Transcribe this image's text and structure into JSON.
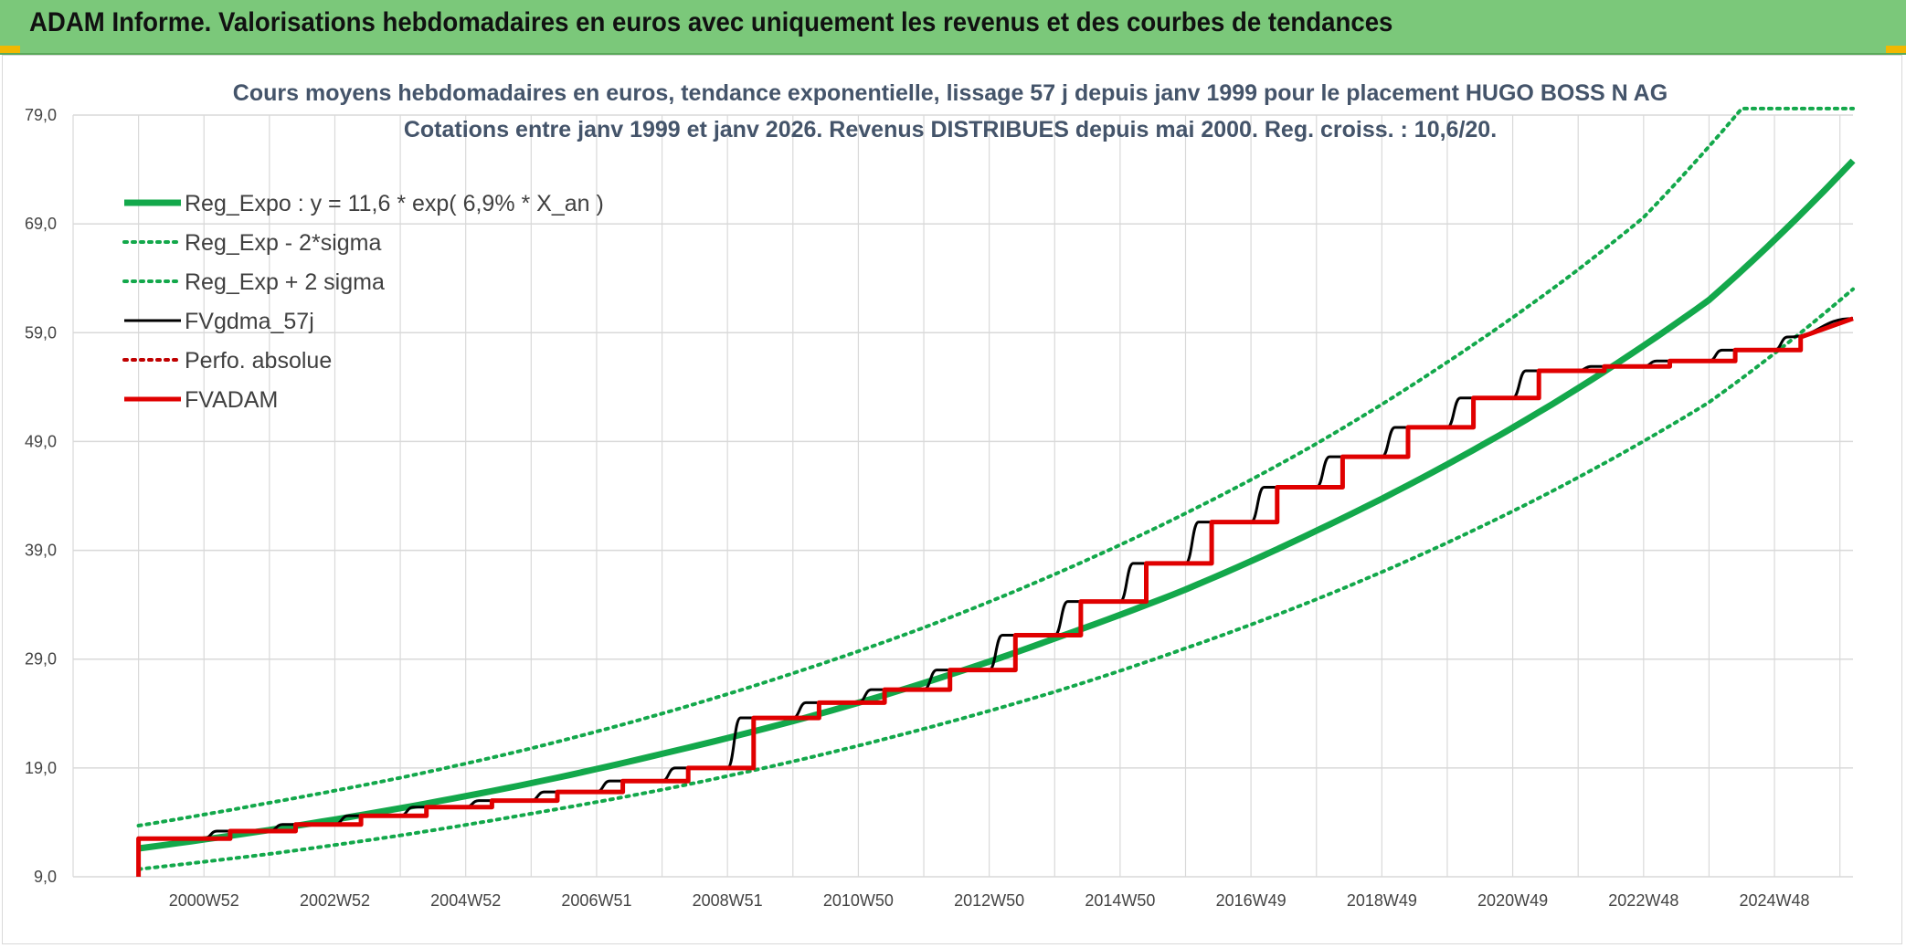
{
  "banner": {
    "title": "ADAM Informe. Valorisations hebdomadaires en euros avec uniquement les revenus et des courbes de tendances"
  },
  "colors": {
    "banner_bg": "#7bc87a",
    "reg_expo": "#13a84b",
    "sigma": "#13a84b",
    "fvgdma": "#000000",
    "perfo": "#c00000",
    "fvadam": "#e00000",
    "grid": "#d9d9d9"
  },
  "chart_data": {
    "type": "line",
    "title": "Cours moyens hebdomadaires en euros, tendance exponentielle, lissage 57 j depuis janv 1999 pour le placement HUGO BOSS N AG",
    "subtitle": "Cotations entre janv 1999 et janv 2026. Revenus DISTRIBUES depuis mai 2000. Reg. croiss. : 10,6/20.",
    "xlabel": "",
    "ylabel": "",
    "xlim": [
      1999.0,
      2026.2
    ],
    "ylim": [
      9.0,
      79.0
    ],
    "y_ticks": [
      "9,0",
      "19,0",
      "29,0",
      "39,0",
      "49,0",
      "59,0",
      "69,0",
      "79,0"
    ],
    "y_tick_values": [
      9,
      19,
      29,
      39,
      49,
      59,
      69,
      79
    ],
    "x_ticks": [
      "2000W52",
      "2002W52",
      "2004W52",
      "2006W51",
      "2008W51",
      "2010W50",
      "2012W50",
      "2014W50",
      "2016W49",
      "2018W49",
      "2020W49",
      "2022W48",
      "2024W48"
    ],
    "x_tick_values": [
      2001.0,
      2003.0,
      2005.0,
      2007.0,
      2009.0,
      2011.0,
      2013.0,
      2015.0,
      2017.0,
      2019.0,
      2021.0,
      2023.0,
      2025.0
    ],
    "grid": true,
    "legend_position": "top-left",
    "series": [
      {
        "name": "Reg_Expo : y = 11,6 * exp( 6,9% *  X_an )",
        "style": "solid-thick",
        "color": "#13a84b",
        "x": [
          2000.0,
          2002.0,
          2004.0,
          2006.0,
          2008.0,
          2010.0,
          2012.0,
          2014.0,
          2016.0,
          2018.0,
          2020.0,
          2022.0,
          2024.0,
          2026.2
        ],
        "y": [
          11.6,
          13.3,
          15.3,
          17.6,
          20.3,
          23.3,
          26.8,
          30.9,
          35.4,
          40.8,
          46.9,
          53.9,
          62.0,
          74.8
        ]
      },
      {
        "name": "Reg_Exp - 2*sigma",
        "style": "dotted",
        "color": "#13a84b",
        "x": [
          2000.0,
          2002.0,
          2004.0,
          2006.0,
          2008.0,
          2010.0,
          2012.0,
          2014.0,
          2016.0,
          2018.0,
          2020.0,
          2022.0,
          2024.0,
          2026.2
        ],
        "y": [
          9.7,
          11.1,
          12.8,
          14.8,
          17.0,
          19.6,
          22.6,
          26.0,
          30.0,
          34.5,
          39.7,
          45.7,
          52.6,
          63.0
        ]
      },
      {
        "name": "Reg_Exp + 2 sigma",
        "style": "dotted",
        "color": "#13a84b",
        "x": [
          2000.0,
          2002.0,
          2004.0,
          2006.0,
          2008.0,
          2010.0,
          2012.0,
          2014.0,
          2016.0,
          2018.0,
          2020.0,
          2022.0,
          2023.0,
          2024.5,
          2026.2
        ],
        "y": [
          13.7,
          15.8,
          18.1,
          20.8,
          24.0,
          27.7,
          31.9,
          36.8,
          42.4,
          48.8,
          56.3,
          64.8,
          69.6,
          79.6,
          79.6
        ]
      },
      {
        "name": "FVgdma_57j",
        "style": "solid",
        "color": "#000000",
        "x": [
          2000.0,
          2000.0,
          2001.0,
          2001.2,
          2002.0,
          2002.2,
          2003.0,
          2003.2,
          2004.0,
          2004.2,
          2005.0,
          2005.2,
          2006.0,
          2006.2,
          2007.0,
          2007.2,
          2008.0,
          2008.2,
          2009.0,
          2009.2,
          2010.0,
          2010.2,
          2011.0,
          2011.2,
          2012.0,
          2012.2,
          2013.0,
          2013.2,
          2014.0,
          2014.2,
          2015.0,
          2015.2,
          2016.0,
          2016.2,
          2017.0,
          2017.2,
          2018.0,
          2018.2,
          2019.0,
          2019.2,
          2020.0,
          2020.2,
          2021.0,
          2021.2,
          2022.0,
          2022.2,
          2023.0,
          2023.2,
          2024.0,
          2024.2,
          2025.0,
          2025.2,
          2026.2
        ],
        "y": [
          9.0,
          12.5,
          12.5,
          13.2,
          13.2,
          13.8,
          13.8,
          14.6,
          14.6,
          15.4,
          15.4,
          16.0,
          16.0,
          16.8,
          16.8,
          17.8,
          17.8,
          19.0,
          19.0,
          23.6,
          23.6,
          25.0,
          25.0,
          26.2,
          26.2,
          28.0,
          28.0,
          31.2,
          31.2,
          34.3,
          34.3,
          37.8,
          37.8,
          41.6,
          41.6,
          44.8,
          44.8,
          47.6,
          47.6,
          50.3,
          50.3,
          53.0,
          53.0,
          55.5,
          55.5,
          55.9,
          55.9,
          56.4,
          56.4,
          57.4,
          57.4,
          58.6,
          60.3
        ]
      },
      {
        "name": "Perfo. absolue",
        "style": "dotted",
        "color": "#c00000",
        "x": [],
        "y": []
      },
      {
        "name": "FVADAM",
        "style": "step-thick",
        "color": "#e00000",
        "x": [
          2000.0,
          2000.0,
          2001.4,
          2001.4,
          2002.4,
          2002.4,
          2003.4,
          2003.4,
          2004.4,
          2004.4,
          2005.4,
          2005.4,
          2006.4,
          2006.4,
          2007.4,
          2007.4,
          2008.4,
          2008.4,
          2009.4,
          2009.4,
          2010.4,
          2010.4,
          2011.4,
          2011.4,
          2012.4,
          2012.4,
          2013.4,
          2013.4,
          2014.4,
          2014.4,
          2015.4,
          2015.4,
          2016.4,
          2016.4,
          2017.4,
          2017.4,
          2018.4,
          2018.4,
          2019.4,
          2019.4,
          2020.4,
          2020.4,
          2021.4,
          2021.4,
          2022.4,
          2022.4,
          2023.4,
          2023.4,
          2024.4,
          2024.4,
          2025.4,
          2025.4,
          2026.2
        ],
        "y": [
          9.0,
          12.5,
          12.5,
          13.2,
          13.2,
          13.8,
          13.8,
          14.6,
          14.6,
          15.4,
          15.4,
          16.0,
          16.0,
          16.8,
          16.8,
          17.8,
          17.8,
          19.0,
          19.0,
          23.6,
          23.6,
          25.0,
          25.0,
          26.2,
          26.2,
          28.0,
          28.0,
          31.2,
          31.2,
          34.3,
          34.3,
          37.8,
          37.8,
          41.6,
          41.6,
          44.8,
          44.8,
          47.6,
          47.6,
          50.3,
          50.3,
          53.0,
          53.0,
          55.5,
          55.5,
          55.9,
          55.9,
          56.4,
          56.4,
          57.4,
          57.4,
          58.6,
          60.3
        ]
      }
    ]
  }
}
